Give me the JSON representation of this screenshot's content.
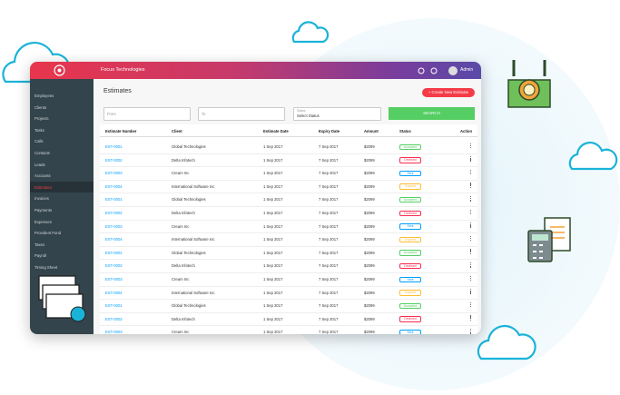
{
  "header": {
    "company": "Focus Technologies",
    "user": "Admin"
  },
  "sidebar": {
    "items": [
      "Employees",
      "Clients",
      "Projects",
      "Tasks",
      "Calls",
      "Contacts",
      "Leads",
      "Accounts",
      "Estimates",
      "Invoices",
      "Payments",
      "Expenses",
      "Provident Fund",
      "Taxes",
      "Payroll",
      "Timing Sheet"
    ]
  },
  "page": {
    "title": "Estimates",
    "create_button": "+ Create New Estimate",
    "filters": {
      "from": "From",
      "to": "To",
      "status_label": "Status",
      "status_placeholder": "Select Status",
      "search": "SEARCH"
    },
    "table": {
      "columns": [
        "Estimate Number",
        "Client",
        "Estimate Date",
        "Expiry Date",
        "Amount",
        "Status",
        "Action"
      ],
      "rows": [
        {
          "number": "EST-0001",
          "client": "Global Technologies",
          "date": "1 Sep 2017",
          "expiry": "7 Sep 2017",
          "amount": "$2099",
          "status": "Accepted",
          "color": "#55ce63"
        },
        {
          "number": "EST-0002",
          "client": "Delta Infotech",
          "date": "1 Sep 2017",
          "expiry": "7 Sep 2017",
          "amount": "$2099",
          "status": "Declined",
          "color": "#f62d51"
        },
        {
          "number": "EST-0003",
          "client": "Cream Inc",
          "date": "1 Sep 2017",
          "expiry": "7 Sep 2017",
          "amount": "$2099",
          "status": "Sent",
          "color": "#009efb"
        },
        {
          "number": "EST-0004",
          "client": "International Software Inc",
          "date": "1 Sep 2017",
          "expiry": "7 Sep 2017",
          "amount": "$2099",
          "status": "Expired",
          "color": "#ffbc34"
        },
        {
          "number": "EST-0001",
          "client": "Global Technologies",
          "date": "1 Sep 2017",
          "expiry": "7 Sep 2017",
          "amount": "$2099",
          "status": "Accepted",
          "color": "#55ce63"
        },
        {
          "number": "EST-0002",
          "client": "Delta Infotech",
          "date": "1 Sep 2017",
          "expiry": "7 Sep 2017",
          "amount": "$2099",
          "status": "Declined",
          "color": "#f62d51"
        },
        {
          "number": "EST-0003",
          "client": "Cream Inc",
          "date": "1 Sep 2017",
          "expiry": "7 Sep 2017",
          "amount": "$2099",
          "status": "Sent",
          "color": "#009efb"
        },
        {
          "number": "EST-0004",
          "client": "International Software Inc",
          "date": "1 Sep 2017",
          "expiry": "7 Sep 2017",
          "amount": "$2099",
          "status": "Expired",
          "color": "#ffbc34"
        },
        {
          "number": "EST-0001",
          "client": "Global Technologies",
          "date": "1 Sep 2017",
          "expiry": "7 Sep 2017",
          "amount": "$2099",
          "status": "Accepted",
          "color": "#55ce63"
        },
        {
          "number": "EST-0002",
          "client": "Delta Infotech",
          "date": "1 Sep 2017",
          "expiry": "7 Sep 2017",
          "amount": "$2099",
          "status": "Declined",
          "color": "#f62d51"
        },
        {
          "number": "EST-0003",
          "client": "Cream Inc",
          "date": "1 Sep 2017",
          "expiry": "7 Sep 2017",
          "amount": "$2099",
          "status": "Sent",
          "color": "#009efb"
        },
        {
          "number": "EST-0004",
          "client": "International Software Inc",
          "date": "1 Sep 2017",
          "expiry": "7 Sep 2017",
          "amount": "$2099",
          "status": "Expired",
          "color": "#ffbc34"
        },
        {
          "number": "EST-0001",
          "client": "Global Technologies",
          "date": "1 Sep 2017",
          "expiry": "7 Sep 2017",
          "amount": "$2099",
          "status": "Accepted",
          "color": "#55ce63"
        },
        {
          "number": "EST-0002",
          "client": "Delta Infotech",
          "date": "1 Sep 2017",
          "expiry": "7 Sep 2017",
          "amount": "$2099",
          "status": "Declined",
          "color": "#f62d51"
        },
        {
          "number": "EST-0003",
          "client": "Cream Inc",
          "date": "1 Sep 2017",
          "expiry": "7 Sep 2017",
          "amount": "$2099",
          "status": "Sent",
          "color": "#009efb"
        }
      ]
    }
  }
}
